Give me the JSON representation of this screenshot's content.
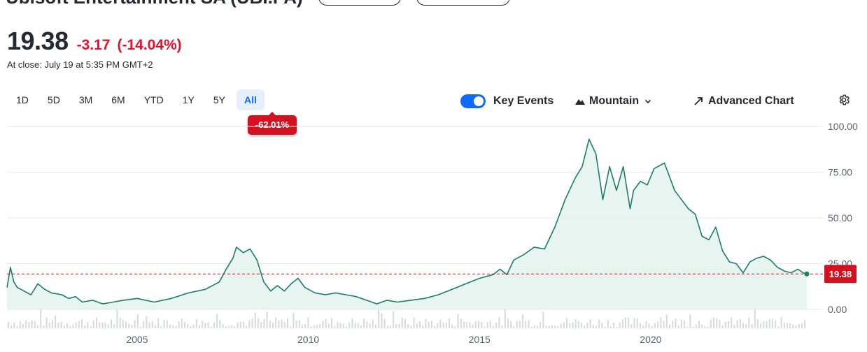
{
  "header": {
    "company": "Ubisoft Entertainment SA (UBI.PA)",
    "price": "19.38",
    "change": "-3.17",
    "change_pct": "(-14.04%)",
    "close_note": "At close: July 19 at 5:35 PM GMT+2"
  },
  "ranges": [
    "1D",
    "5D",
    "3M",
    "6M",
    "YTD",
    "1Y",
    "5Y",
    "All"
  ],
  "active_range": "All",
  "range_change": "-62.01%",
  "controls": {
    "key_events": "Key Events",
    "chart_type": "Mountain",
    "advanced": "Advanced Chart"
  },
  "colors": {
    "line": "#1a7f64",
    "fill": "#e3f2ec",
    "negative": "#d4111e",
    "accent": "#0f69ff"
  },
  "icons": [
    "mountain-icon",
    "chevron-down-icon",
    "expand-arrow-icon",
    "gear-icon"
  ],
  "chart_data": {
    "type": "area",
    "x_unit": "year",
    "xlim": [
      2001.2,
      2024.56
    ],
    "ylim": [
      0,
      100
    ],
    "y_ticks": [
      "100.00",
      "75.00",
      "50.00",
      "25.00",
      "0.00"
    ],
    "x_ticks": [
      "2005",
      "2010",
      "2015",
      "2020"
    ],
    "last_price": "19.38",
    "last_value": 19.38,
    "grid": true,
    "volume_bars": true,
    "series": [
      {
        "x": [
          2001.2,
          2001.3,
          2001.4,
          2001.5,
          2001.7,
          2001.9,
          2002.1,
          2002.3,
          2002.5,
          2002.8,
          2003.0,
          2003.2,
          2003.4,
          2003.7,
          2004.0,
          2004.3,
          2004.6,
          2005.0,
          2005.5,
          2006.0,
          2006.5,
          2007.0,
          2007.4,
          2007.6,
          2007.8,
          2007.9,
          2008.1,
          2008.3,
          2008.5,
          2008.7,
          2008.9,
          2009.1,
          2009.3,
          2009.5,
          2009.7,
          2009.9,
          2010.2,
          2010.5,
          2010.8,
          2011.1,
          2011.4,
          2011.7,
          2012.0,
          2012.3,
          2012.6,
          2013.0,
          2013.4,
          2013.8,
          2014.2,
          2014.6,
          2015.0,
          2015.4,
          2015.6,
          2015.8,
          2016.0,
          2016.3,
          2016.6,
          2016.9,
          2017.2,
          2017.5,
          2017.8,
          2018.0,
          2018.2,
          2018.4,
          2018.6,
          2018.8,
          2019.0,
          2019.2,
          2019.4,
          2019.5,
          2019.7,
          2019.9,
          2020.1,
          2020.4,
          2020.7,
          2020.9,
          2021.1,
          2021.3,
          2021.5,
          2021.7,
          2021.9,
          2022.1,
          2022.3,
          2022.5,
          2022.7,
          2022.9,
          2023.1,
          2023.3,
          2023.5,
          2023.7,
          2023.9,
          2024.1,
          2024.3,
          2024.45,
          2024.56
        ],
        "y": [
          12,
          23,
          15,
          12,
          10,
          8,
          14,
          11,
          9,
          8,
          6,
          7,
          4,
          5,
          3,
          4,
          5,
          6,
          4,
          6,
          9,
          11,
          15,
          22,
          28,
          34,
          31,
          33,
          27,
          15,
          10,
          13,
          10,
          14,
          17,
          12,
          9,
          8,
          9,
          8,
          7,
          5,
          3,
          5,
          4,
          5,
          6,
          8,
          11,
          14,
          17,
          19,
          22,
          19,
          27,
          30,
          34,
          33,
          45,
          60,
          72,
          78,
          93,
          85,
          60,
          78,
          65,
          78,
          55,
          65,
          70,
          68,
          77,
          80,
          65,
          60,
          55,
          52,
          40,
          38,
          45,
          32,
          26,
          25,
          20,
          26,
          28,
          29,
          27,
          23,
          21,
          20,
          22,
          20,
          19.38
        ]
      }
    ]
  }
}
